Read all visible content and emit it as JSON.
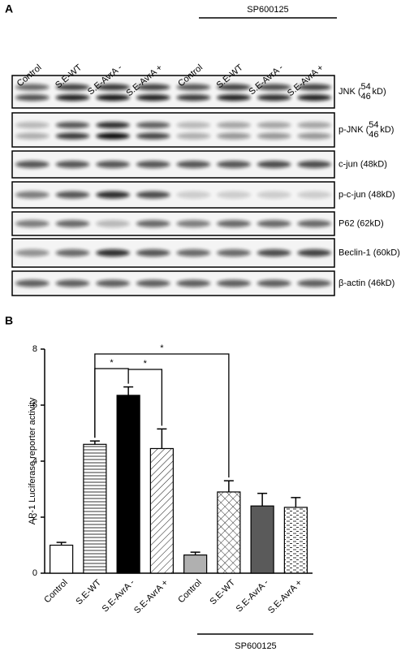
{
  "panel_a": {
    "label": "A",
    "treatment": "SP600125",
    "lanes": [
      "Control",
      "S.E-WT",
      "S.E-AvrA -",
      "S.E-AvrA +",
      "Control",
      "S.E-WT",
      "S.E-AvrA -",
      "S.E-AvrA +"
    ],
    "blots": [
      {
        "label": "JNK (",
        "upper": "54",
        "lower": "46",
        "suffix": "kD)"
      },
      {
        "label": "p-JNK (",
        "upper": "54",
        "lower": "46",
        "suffix": "kD)"
      },
      {
        "label": "c-jun (48kD)"
      },
      {
        "label": "p-c-jun (48kD)"
      },
      {
        "label": "P62 (62kD)"
      },
      {
        "label": "Beclin-1 (60kD)"
      },
      {
        "label": "β-actin (46kD)"
      }
    ]
  },
  "chart_data": {
    "type": "bar",
    "panel_label": "B",
    "y_label": "AP-1 Luciferase reporter activity",
    "categories": [
      "Control",
      "S.E-WT",
      "S.E-AvrA -",
      "S.E-AvrA +",
      "Control",
      "S.E-WT",
      "S.E-AvrA -",
      "S.E-AvrA +"
    ],
    "values": [
      1.0,
      4.6,
      6.35,
      4.45,
      0.65,
      2.9,
      2.4,
      2.35
    ],
    "errors": [
      0.1,
      0.12,
      0.3,
      0.7,
      0.1,
      0.4,
      0.45,
      0.35
    ],
    "colors": [
      "#ffffff",
      "#ffffff",
      "#000000",
      "#ffffff",
      "#b0b0b0",
      "#ffffff",
      "#5a5a5a",
      "#ffffff"
    ],
    "hatches": [
      "none",
      "horizontal",
      "none",
      "diagonal",
      "none",
      "cross",
      "none",
      "dashes"
    ],
    "ylim": [
      0,
      8
    ],
    "yticks": [
      0,
      2,
      4,
      6,
      8
    ],
    "annotations": [
      "*",
      "*",
      "*"
    ],
    "group_label": "SP600125"
  }
}
